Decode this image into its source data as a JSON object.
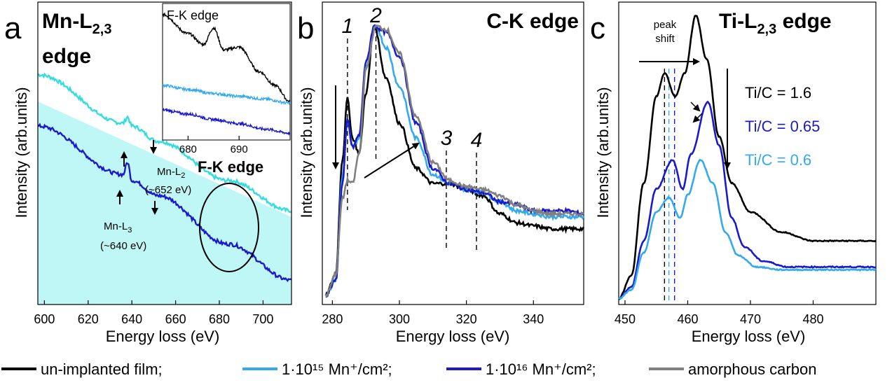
{
  "colors": {
    "unimplanted": "#000000",
    "mn1e15": "#33aaee",
    "mn1e16": "#1a1acc",
    "amorphous": "#808080",
    "cyan_panel_a": "#33dddd",
    "fill_panel_a": "#bff6f6"
  },
  "legend": {
    "items": [
      {
        "key": "unimplanted",
        "label": "un-implanted film;"
      },
      {
        "key": "mn1e15",
        "label": "1·10¹⁵ Mn⁺/cm²;"
      },
      {
        "key": "mn1e16",
        "label": "1·10¹⁶ Mn⁺/cm²;"
      },
      {
        "key": "amorphous",
        "label": "amorphous carbon"
      }
    ]
  },
  "chart_data": [
    {
      "panel": "a",
      "type": "line",
      "title": "Mn-L2,3 edge",
      "title_main": "Mn-L",
      "title_sub": "2,3",
      "title_line2": "edge",
      "xlabel": "Energy loss (eV)",
      "ylabel": "Intensity (arb.units)",
      "xlim": [
        597,
        713
      ],
      "xticks": [
        600,
        620,
        640,
        660,
        680,
        700
      ],
      "annotations": {
        "l3_text": "Mn-L",
        "l3_sub": "3",
        "l3_energy": "(~640 eV)",
        "l2_text": "Mn-L",
        "l2_sub": "2",
        "l2_energy": "(~652 eV)",
        "fk_label": "F-K edge"
      },
      "series": [
        {
          "color_key": "cyan_panel_a",
          "x": [
            597,
            636,
            638,
            640,
            652,
            684,
            713
          ],
          "y": [
            0.76,
            0.6,
            0.62,
            0.59,
            0.54,
            0.41,
            0.31
          ]
        },
        {
          "color_key": "mn1e16",
          "x": [
            597,
            636,
            638,
            640,
            652,
            684,
            713
          ],
          "y": [
            0.59,
            0.43,
            0.47,
            0.41,
            0.36,
            0.2,
            0.08
          ]
        }
      ],
      "inset": {
        "title": "F-K edge",
        "xlim": [
          675,
          700
        ],
        "xticks": [
          680,
          690
        ],
        "series": [
          {
            "color_key": "unimplanted",
            "x": [
              675,
              680,
              683,
              685,
              687,
              690,
              694,
              697,
              700
            ],
            "y": [
              0.92,
              0.78,
              0.7,
              0.82,
              0.66,
              0.68,
              0.5,
              0.4,
              0.28
            ]
          },
          {
            "color_key": "mn1e15",
            "x": [
              675,
              680,
              685,
              690,
              695,
              700
            ],
            "y": [
              0.4,
              0.37,
              0.34,
              0.32,
              0.3,
              0.27
            ]
          },
          {
            "color_key": "mn1e16",
            "x": [
              675,
              680,
              685,
              690,
              695,
              700
            ],
            "y": [
              0.22,
              0.19,
              0.15,
              0.12,
              0.08,
              0.05
            ]
          }
        ]
      }
    },
    {
      "panel": "b",
      "type": "line",
      "title": "C-K edge",
      "xlabel": "Energy loss (eV)",
      "ylabel": "Intensity (arb.units)",
      "xlim": [
        277,
        355
      ],
      "xticks": [
        280,
        300,
        320,
        340
      ],
      "peak_labels": [
        {
          "label": "1",
          "x": 284.5
        },
        {
          "label": "2",
          "x": 293
        },
        {
          "label": "3",
          "x": 314
        },
        {
          "label": "4",
          "x": 323
        }
      ],
      "series": [
        {
          "color_key": "unimplanted",
          "x": [
            278,
            281,
            283,
            284.5,
            286,
            288,
            290,
            292.5,
            296,
            300,
            305,
            310,
            315,
            320,
            325,
            330,
            335,
            340,
            345,
            350,
            355
          ],
          "y": [
            0.03,
            0.1,
            0.48,
            0.68,
            0.55,
            0.5,
            0.7,
            0.92,
            0.75,
            0.6,
            0.45,
            0.4,
            0.4,
            0.38,
            0.36,
            0.3,
            0.27,
            0.26,
            0.25,
            0.25,
            0.25
          ]
        },
        {
          "color_key": "mn1e15",
          "x": [
            278,
            281,
            283,
            284.5,
            286,
            288,
            290,
            293,
            296,
            300,
            305,
            310,
            315,
            320,
            325,
            330,
            335,
            340,
            345,
            350,
            355
          ],
          "y": [
            0.03,
            0.08,
            0.42,
            0.61,
            0.52,
            0.55,
            0.78,
            0.92,
            0.85,
            0.72,
            0.55,
            0.43,
            0.4,
            0.38,
            0.37,
            0.34,
            0.31,
            0.3,
            0.29,
            0.29,
            0.29
          ]
        },
        {
          "color_key": "mn1e16",
          "x": [
            278,
            281,
            283,
            284.5,
            286,
            288,
            290,
            292.5,
            296,
            300,
            305,
            310,
            315,
            320,
            325,
            330,
            335,
            340,
            345,
            350,
            355
          ],
          "y": [
            0.03,
            0.08,
            0.4,
            0.61,
            0.52,
            0.56,
            0.8,
            0.92,
            0.9,
            0.82,
            0.6,
            0.45,
            0.4,
            0.38,
            0.37,
            0.34,
            0.33,
            0.31,
            0.31,
            0.31,
            0.3
          ]
        },
        {
          "color_key": "amorphous",
          "x": [
            278,
            281,
            283,
            284.5,
            286,
            288,
            290,
            293,
            296,
            300,
            305,
            310,
            315,
            320,
            325,
            330,
            335,
            340,
            345,
            350,
            355
          ],
          "y": [
            0.03,
            0.1,
            0.35,
            0.41,
            0.4,
            0.5,
            0.78,
            0.92,
            0.91,
            0.83,
            0.62,
            0.47,
            0.41,
            0.39,
            0.38,
            0.36,
            0.33,
            0.31,
            0.3,
            0.3,
            0.3
          ]
        }
      ]
    },
    {
      "panel": "c",
      "type": "line",
      "title": "Ti-L2,3 edge",
      "title_main": "Ti-L",
      "title_sub": "2,3",
      "title_tail": " edge",
      "xlabel": "Energy loss (eV)",
      "ylabel": "Intensity (arb.units)",
      "xlim": [
        449,
        490
      ],
      "xticks": [
        450,
        460,
        470,
        480
      ],
      "peak_shift_label": "peak shift",
      "ratio_labels": [
        {
          "color_key": "unimplanted",
          "text": "Ti/C = 1.6"
        },
        {
          "color_key": "mn1e16",
          "text": "Ti/C = 0.65"
        },
        {
          "color_key": "mn1e15",
          "text": "Ti/C = 0.6"
        }
      ],
      "series": [
        {
          "color_key": "unimplanted",
          "x": [
            449,
            451,
            453,
            455,
            456.3,
            458,
            459.5,
            461.3,
            463,
            465,
            467,
            470,
            475,
            480,
            485,
            490
          ],
          "y": [
            0.02,
            0.1,
            0.42,
            0.72,
            0.8,
            0.72,
            0.8,
            1.0,
            0.85,
            0.58,
            0.42,
            0.32,
            0.25,
            0.22,
            0.22,
            0.22
          ]
        },
        {
          "color_key": "mn1e16",
          "x": [
            449,
            451,
            453,
            455,
            457.6,
            459.2,
            460.5,
            463.2,
            465,
            467,
            469,
            472,
            476,
            480,
            485,
            490
          ],
          "y": [
            0.02,
            0.06,
            0.22,
            0.4,
            0.5,
            0.4,
            0.52,
            0.7,
            0.55,
            0.3,
            0.2,
            0.15,
            0.13,
            0.13,
            0.13,
            0.13
          ]
        },
        {
          "color_key": "mn1e15",
          "x": [
            449,
            451,
            453,
            455,
            457,
            458.8,
            460,
            462,
            464,
            466,
            468,
            471,
            475,
            480,
            485,
            490
          ],
          "y": [
            0.02,
            0.05,
            0.18,
            0.32,
            0.37,
            0.3,
            0.38,
            0.5,
            0.42,
            0.25,
            0.17,
            0.13,
            0.12,
            0.12,
            0.12,
            0.12
          ]
        }
      ]
    }
  ]
}
